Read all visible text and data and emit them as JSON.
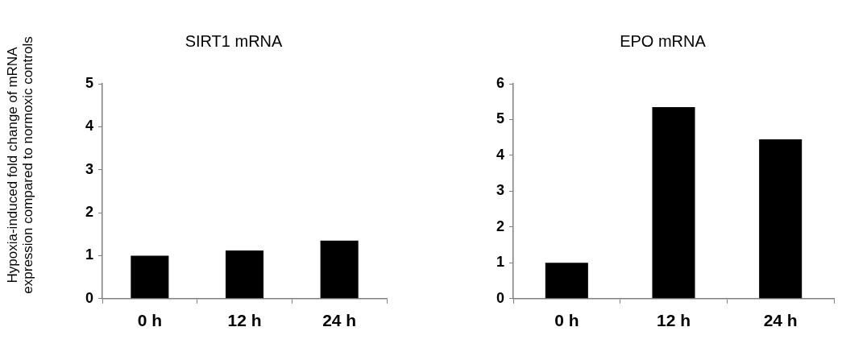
{
  "chart_data": [
    {
      "type": "bar",
      "title": "SIRT1 mRNA",
      "ylabel": "Hypoxia-induced fold change of mRNA expression compared to normoxic controls",
      "categories": [
        "0 h",
        "12 h",
        "24 h"
      ],
      "values": [
        1.0,
        1.12,
        1.35
      ],
      "color": "#000000",
      "ylim": [
        0,
        5
      ],
      "yticks": [
        0,
        1,
        2,
        3,
        4,
        5
      ],
      "grid": false,
      "legend": false
    },
    {
      "type": "bar",
      "title": "EPO mRNA",
      "categories": [
        "0 h",
        "12 h",
        "24 h"
      ],
      "values": [
        1.0,
        5.35,
        4.45
      ],
      "color": "#000000",
      "ylim": [
        0,
        6
      ],
      "yticks": [
        0,
        1,
        2,
        3,
        4,
        5,
        6
      ],
      "grid": false,
      "legend": false
    }
  ]
}
